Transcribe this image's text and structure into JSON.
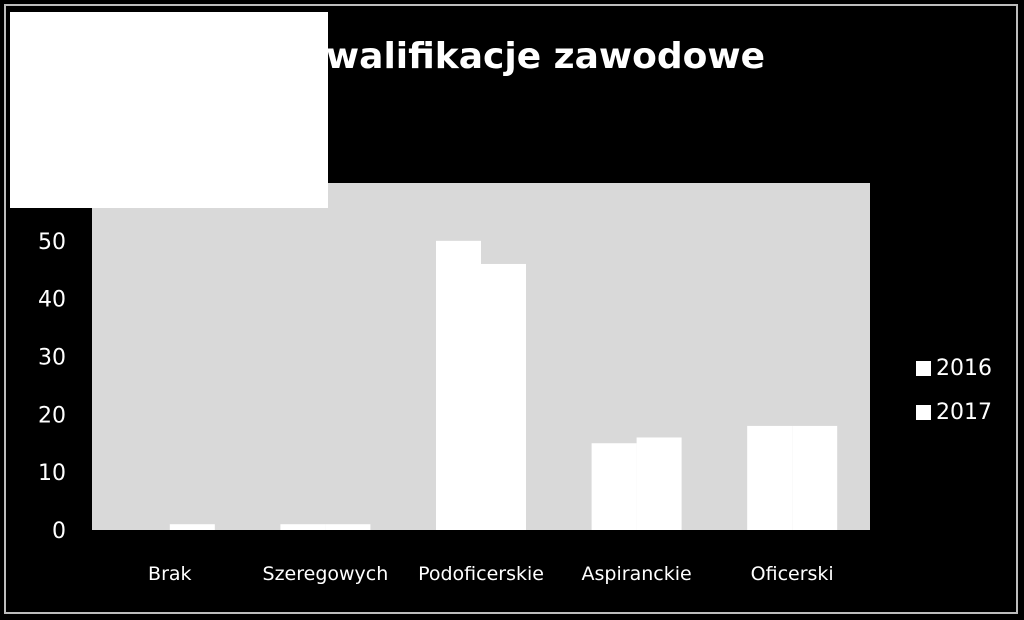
{
  "chart_data": {
    "type": "bar",
    "title": "Kwalifikacje zawodowe",
    "categories": [
      "Brak",
      "Szeregowych",
      "Podoficerskie",
      "Aspiranckie",
      "Oficerski"
    ],
    "series": [
      {
        "name": "2016",
        "values": [
          0,
          1,
          50,
          15,
          18
        ]
      },
      {
        "name": "2017",
        "values": [
          1,
          1,
          46,
          16,
          18
        ]
      }
    ],
    "y_ticks": [
      "0",
      "10",
      "20",
      "30",
      "40",
      "50"
    ],
    "ylim": [
      0,
      60
    ],
    "grid": false,
    "legend": "right",
    "colors": {
      "background": "#000000",
      "plot_area": "#d9d9d9",
      "bars": "#ffffff",
      "text": "#ffffff"
    }
  }
}
